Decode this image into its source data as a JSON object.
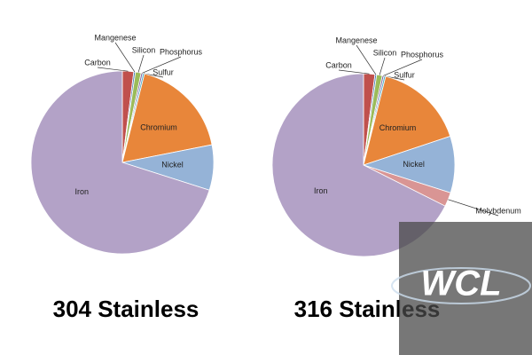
{
  "chart_data": [
    {
      "type": "pie",
      "title": "304 Stainless",
      "categories": [
        "Carbon",
        "Mangenese",
        "Silicon",
        "Phosphorus",
        "Sulfur",
        "Chromium",
        "Nickel",
        "Iron"
      ],
      "values": [
        2,
        0.3,
        1,
        0.3,
        0.3,
        18,
        8,
        70.1
      ],
      "colors": [
        "#c0504d",
        "#4f81bd",
        "#9bbb59",
        "#8064a2",
        "#4bacc6",
        "#e8863a",
        "#95b3d7",
        "#b3a2c7"
      ]
    },
    {
      "type": "pie",
      "title": "316 Stainless",
      "categories": [
        "Carbon",
        "Mangenese",
        "Silicon",
        "Phosphorus",
        "Sulfur",
        "Chromium",
        "Nickel",
        "Molybdenum",
        "Iron"
      ],
      "values": [
        2,
        0.3,
        1,
        0.3,
        0.3,
        16,
        10,
        2.5,
        67.6
      ],
      "colors": [
        "#c0504d",
        "#4f81bd",
        "#9bbb59",
        "#8064a2",
        "#4bacc6",
        "#e8863a",
        "#95b3d7",
        "#d99594",
        "#b3a2c7"
      ]
    }
  ],
  "logo": "WCL"
}
